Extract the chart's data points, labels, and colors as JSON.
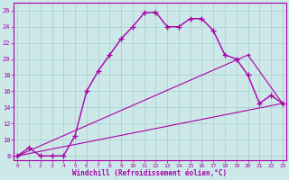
{
  "xlabel": "Windchill (Refroidissement éolien,°C)",
  "background_color": "#cce8e8",
  "line_color": "#aa00aa",
  "grid_color": "#aacccc",
  "x_ticks": [
    0,
    1,
    2,
    3,
    4,
    5,
    6,
    7,
    8,
    9,
    10,
    11,
    12,
    13,
    14,
    15,
    16,
    17,
    18,
    19,
    20,
    21,
    22,
    23
  ],
  "y_ticks": [
    8,
    10,
    12,
    14,
    16,
    18,
    20,
    22,
    24,
    26
  ],
  "ylim": [
    7.5,
    27.0
  ],
  "xlim": [
    -0.3,
    23.3
  ],
  "line1_x": [
    0,
    1,
    2,
    3,
    4,
    5,
    6,
    7,
    8,
    9,
    10,
    11,
    12,
    13,
    14,
    15,
    16,
    17,
    18,
    19,
    20,
    21,
    22,
    23
  ],
  "line1_y": [
    8,
    9,
    8,
    8,
    8,
    10.5,
    16,
    18.5,
    20.5,
    22.5,
    24,
    25.7,
    25.8,
    24,
    24,
    25,
    25,
    23.5,
    20.5,
    20,
    18,
    14.5,
    15.5,
    14.5
  ],
  "line2_x": [
    0,
    23
  ],
  "line2_y": [
    8,
    14.5
  ],
  "line3_x": [
    0,
    20,
    23
  ],
  "line3_y": [
    8,
    20.5,
    14.5
  ],
  "tick_fontsize": 5.0,
  "xlabel_fontsize": 5.5
}
